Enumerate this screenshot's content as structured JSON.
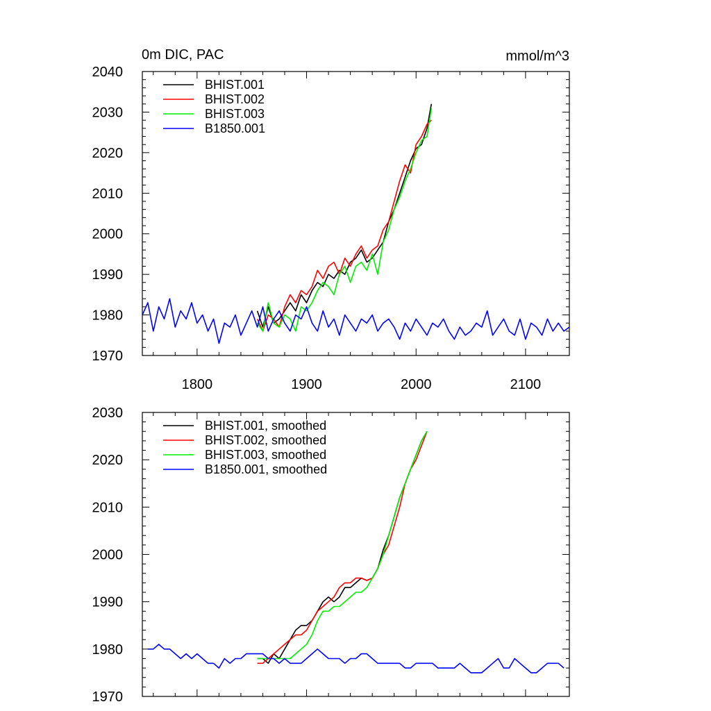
{
  "chart_data": [
    {
      "type": "line",
      "title": "0m DIC, PAC",
      "units": "mmol/m^3",
      "xlim": [
        1750,
        2140
      ],
      "ylim": [
        1970,
        2040
      ],
      "xticks": [
        1800,
        1900,
        2000,
        2100
      ],
      "xtick_labels": [
        "1800",
        "1900",
        "2000",
        "2100"
      ],
      "yticks": [
        1970,
        1980,
        1990,
        2000,
        2010,
        2020,
        2030,
        2040
      ],
      "ytick_labels": [
        "1970",
        "1980",
        "1990",
        "2000",
        "2010",
        "2020",
        "2030",
        "2040"
      ],
      "legend_position": "top-left",
      "series": [
        {
          "name": "BHIST.001",
          "color": "#000000",
          "x": [
            1855,
            1860,
            1865,
            1870,
            1875,
            1880,
            1885,
            1890,
            1895,
            1900,
            1905,
            1910,
            1915,
            1920,
            1925,
            1930,
            1935,
            1940,
            1945,
            1950,
            1955,
            1960,
            1965,
            1970,
            1975,
            1980,
            1985,
            1990,
            1995,
            2000,
            2005,
            2010,
            2014
          ],
          "y": [
            1981,
            1977,
            1982,
            1978,
            1979,
            1981,
            1983,
            1981,
            1985,
            1983,
            1986,
            1988,
            1987,
            1990,
            1989,
            1991,
            1990,
            1993,
            1994,
            1996,
            1993,
            1994,
            1996,
            1998,
            2003,
            2006,
            2010,
            2014,
            2018,
            2021,
            2022,
            2026,
            2032
          ]
        },
        {
          "name": "BHIST.002",
          "color": "#ff0000",
          "x": [
            1855,
            1860,
            1865,
            1870,
            1875,
            1880,
            1885,
            1890,
            1895,
            1900,
            1905,
            1910,
            1915,
            1920,
            1925,
            1930,
            1935,
            1940,
            1945,
            1950,
            1955,
            1960,
            1965,
            1970,
            1975,
            1980,
            1985,
            1990,
            1995,
            2000,
            2005,
            2010,
            2014
          ],
          "y": [
            1979,
            1976,
            1980,
            1979,
            1977,
            1982,
            1985,
            1983,
            1986,
            1985,
            1987,
            1991,
            1989,
            1992,
            1993,
            1990,
            1994,
            1992,
            1995,
            1997,
            1994,
            1996,
            1997,
            2001,
            2003,
            2008,
            2013,
            2017,
            2015,
            2022,
            2024,
            2027,
            2028
          ]
        },
        {
          "name": "BHIST.003",
          "color": "#00ee00",
          "x": [
            1855,
            1860,
            1865,
            1870,
            1875,
            1880,
            1885,
            1890,
            1895,
            1900,
            1905,
            1910,
            1915,
            1920,
            1925,
            1930,
            1935,
            1940,
            1945,
            1950,
            1955,
            1960,
            1965,
            1970,
            1975,
            1980,
            1985,
            1990,
            1995,
            2000,
            2005,
            2010,
            2014
          ],
          "y": [
            1978,
            1976,
            1983,
            1978,
            1977,
            1980,
            1979,
            1976,
            1982,
            1981,
            1983,
            1986,
            1988,
            1987,
            1985,
            1990,
            1992,
            1988,
            1992,
            1993,
            1991,
            1995,
            1990,
            1998,
            2001,
            2006,
            2009,
            2013,
            2016,
            2020,
            2023,
            2024,
            2031
          ]
        },
        {
          "name": "B1850.001",
          "color": "#0000ff",
          "x": [
            1750,
            1755,
            1760,
            1765,
            1770,
            1775,
            1780,
            1785,
            1790,
            1795,
            1800,
            1805,
            1810,
            1815,
            1820,
            1825,
            1830,
            1835,
            1840,
            1845,
            1850,
            1855,
            1860,
            1865,
            1870,
            1875,
            1880,
            1885,
            1890,
            1895,
            1900,
            1905,
            1910,
            1915,
            1920,
            1925,
            1930,
            1935,
            1940,
            1945,
            1950,
            1955,
            1960,
            1965,
            1970,
            1975,
            1980,
            1985,
            1990,
            1995,
            2000,
            2005,
            2010,
            2015,
            2020,
            2025,
            2030,
            2035,
            2040,
            2045,
            2050,
            2055,
            2060,
            2065,
            2070,
            2075,
            2080,
            2085,
            2090,
            2095,
            2100,
            2105,
            2110,
            2115,
            2120,
            2125,
            2130,
            2135,
            2140
          ],
          "y": [
            1980,
            1983,
            1976,
            1982,
            1979,
            1984,
            1977,
            1981,
            1979,
            1983,
            1978,
            1980,
            1976,
            1979,
            1973,
            1978,
            1977,
            1980,
            1975,
            1978,
            1981,
            1977,
            1982,
            1976,
            1979,
            1981,
            1978,
            1976,
            1980,
            1979,
            1982,
            1978,
            1976,
            1981,
            1977,
            1979,
            1975,
            1980,
            1978,
            1976,
            1979,
            1978,
            1980,
            1976,
            1978,
            1979,
            1977,
            1974,
            1978,
            1976,
            1979,
            1977,
            1975,
            1978,
            1977,
            1979,
            1976,
            1974,
            1977,
            1975,
            1976,
            1978,
            1977,
            1981,
            1975,
            1977,
            1979,
            1976,
            1975,
            1979,
            1974,
            1978,
            1977,
            1975,
            1979,
            1976,
            1978,
            1976,
            1977
          ]
        }
      ]
    },
    {
      "type": "line",
      "xlim": [
        1750,
        2140
      ],
      "ylim": [
        1970,
        2030
      ],
      "xticks": [
        1800,
        1900,
        2000,
        2100
      ],
      "xtick_labels": [],
      "yticks": [
        1970,
        1980,
        1990,
        2000,
        2010,
        2020,
        2030
      ],
      "ytick_labels": [
        "1970",
        "1980",
        "1990",
        "2000",
        "2010",
        "2020",
        "2030"
      ],
      "legend_position": "top-left",
      "series": [
        {
          "name": "BHIST.001, smoothed",
          "color": "#000000",
          "x": [
            1855,
            1860,
            1865,
            1870,
            1875,
            1880,
            1885,
            1890,
            1895,
            1900,
            1905,
            1910,
            1915,
            1920,
            1925,
            1930,
            1935,
            1940,
            1945,
            1950,
            1955,
            1960,
            1965,
            1970,
            1975,
            1980,
            1985,
            1990,
            1995,
            2000,
            2005,
            2010
          ],
          "y": [
            1978,
            1978,
            1977,
            1979,
            1978,
            1980,
            1982,
            1984,
            1985,
            1985,
            1986,
            1988,
            1990,
            1991,
            1990,
            1991,
            1993,
            1993,
            1994,
            1995,
            1994.5,
            1995,
            1997,
            2001,
            2004,
            2008,
            2012,
            2015,
            2018,
            2021,
            2024,
            2026
          ]
        },
        {
          "name": "BHIST.002, smoothed",
          "color": "#ff0000",
          "x": [
            1855,
            1860,
            1865,
            1870,
            1875,
            1880,
            1885,
            1890,
            1895,
            1900,
            1905,
            1910,
            1915,
            1920,
            1925,
            1930,
            1935,
            1940,
            1945,
            1950,
            1955,
            1960,
            1965,
            1970,
            1975,
            1980,
            1985,
            1990,
            1995,
            2000,
            2005,
            2010
          ],
          "y": [
            1977,
            1977,
            1978,
            1979,
            1980,
            1981,
            1982,
            1983,
            1983,
            1984,
            1986,
            1988,
            1989,
            1990,
            1991,
            1993,
            1994,
            1994,
            1995,
            1995,
            1994.5,
            1995,
            1997,
            2000,
            2002,
            2006,
            2010,
            2015,
            2018,
            2020,
            2023,
            2026
          ]
        },
        {
          "name": "BHIST.003, smoothed",
          "color": "#00ee00",
          "x": [
            1855,
            1860,
            1865,
            1870,
            1875,
            1880,
            1885,
            1890,
            1895,
            1900,
            1905,
            1910,
            1915,
            1920,
            1925,
            1930,
            1935,
            1940,
            1945,
            1950,
            1955,
            1960,
            1965,
            1970,
            1975,
            1980,
            1985,
            1990,
            1995,
            2000,
            2005,
            2010
          ],
          "y": [
            1978,
            1978,
            1978,
            1978,
            1978,
            1978,
            1978,
            1979,
            1980,
            1981,
            1983,
            1986,
            1988,
            1988,
            1989,
            1989,
            1990,
            1991,
            1992,
            1992,
            1993,
            1995,
            1997,
            2000,
            2004,
            2008,
            2012,
            2015,
            2018,
            2021,
            2024,
            2026
          ]
        },
        {
          "name": "B1850.001, smoothed",
          "color": "#0000ff",
          "x": [
            1755,
            1760,
            1765,
            1770,
            1775,
            1780,
            1785,
            1790,
            1795,
            1800,
            1805,
            1810,
            1815,
            1820,
            1825,
            1830,
            1835,
            1840,
            1845,
            1850,
            1855,
            1860,
            1865,
            1870,
            1875,
            1880,
            1885,
            1890,
            1895,
            1900,
            1905,
            1910,
            1915,
            1920,
            1925,
            1930,
            1935,
            1940,
            1945,
            1950,
            1955,
            1960,
            1965,
            1970,
            1975,
            1980,
            1985,
            1990,
            1995,
            2000,
            2005,
            2010,
            2015,
            2020,
            2025,
            2030,
            2035,
            2040,
            2045,
            2050,
            2055,
            2060,
            2065,
            2070,
            2075,
            2080,
            2085,
            2090,
            2095,
            2100,
            2105,
            2110,
            2115,
            2120,
            2125,
            2130,
            2135
          ],
          "y": [
            1980,
            1980,
            1981,
            1980,
            1980,
            1979,
            1978,
            1979,
            1978,
            1979,
            1978,
            1977,
            1977,
            1976,
            1978,
            1977,
            1978,
            1978,
            1979,
            1979,
            1979,
            1979,
            1978,
            1978,
            1977,
            1978,
            1977,
            1977,
            1977,
            1978,
            1979,
            1980,
            1979,
            1978,
            1978,
            1978,
            1977,
            1978,
            1978,
            1979,
            1979,
            1978,
            1977,
            1977,
            1977,
            1977,
            1977,
            1976,
            1976,
            1977,
            1977,
            1977,
            1977,
            1976,
            1976,
            1976,
            1976,
            1977,
            1976,
            1975,
            1975,
            1975,
            1976,
            1977,
            1978,
            1976,
            1976,
            1978,
            1977,
            1976,
            1975,
            1975,
            1976,
            1977,
            1977,
            1977,
            1976
          ]
        }
      ]
    }
  ]
}
